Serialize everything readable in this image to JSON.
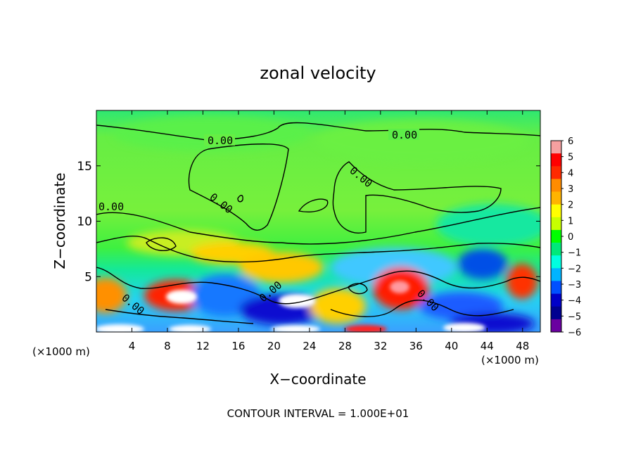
{
  "chart_data": {
    "type": "heatmap",
    "title": "zonal velocity",
    "xlabel": "X−coordinate",
    "ylabel": "Z−coordinate",
    "x_unit_left": "(×1000 m)",
    "x_unit_right": "(×1000 m)",
    "xlim": [
      0,
      50
    ],
    "ylim": [
      0,
      20
    ],
    "x_ticks": [
      4,
      8,
      12,
      16,
      20,
      24,
      28,
      32,
      36,
      40,
      44,
      48
    ],
    "y_ticks": [
      5,
      10,
      15
    ],
    "contour_labels": [
      "0.00",
      "0.00",
      "0.00",
      "0.00",
      "0.00",
      "0.00",
      "0.00",
      "0.00"
    ],
    "footer": "CONTOUR INTERVAL = 1.000E+01",
    "colorbar": {
      "ticks": [
        "6",
        "5",
        "4",
        "3",
        "2",
        "1",
        "0",
        "−1",
        "−2",
        "−3",
        "−4",
        "−5",
        "−6"
      ],
      "colors": [
        "#f5a0a0",
        "#ff0000",
        "#ff2a00",
        "#ff8c00",
        "#ffb400",
        "#ffff00",
        "#c8ff00",
        "#00ff00",
        "#00e87a",
        "#00ffe0",
        "#00b4ff",
        "#0050ff",
        "#0000c8",
        "#000090",
        "#6a00a0"
      ]
    },
    "approx_field": [
      {
        "x": 0,
        "z": 18,
        "u": 0.5
      },
      {
        "x": 25,
        "z": 17,
        "u": 0.3
      },
      {
        "x": 50,
        "z": 18,
        "u": 0.2
      },
      {
        "x": 10,
        "z": 12,
        "u": -0.5
      },
      {
        "x": 30,
        "z": 14,
        "u": 0.5
      },
      {
        "x": 45,
        "z": 11,
        "u": -1.0
      },
      {
        "x": 10,
        "z": 3.5,
        "u": 4
      },
      {
        "x": 22,
        "z": 2.5,
        "u": -5
      },
      {
        "x": 34,
        "z": 4,
        "u": 4
      },
      {
        "x": 44,
        "z": 6,
        "u": -3.5
      },
      {
        "x": 47,
        "z": 4.5,
        "u": 3
      },
      {
        "x": 2,
        "z": 4,
        "u": 3
      },
      {
        "x": 20,
        "z": 7,
        "u": 2
      },
      {
        "x": 38,
        "z": 6,
        "u": -2
      }
    ]
  }
}
